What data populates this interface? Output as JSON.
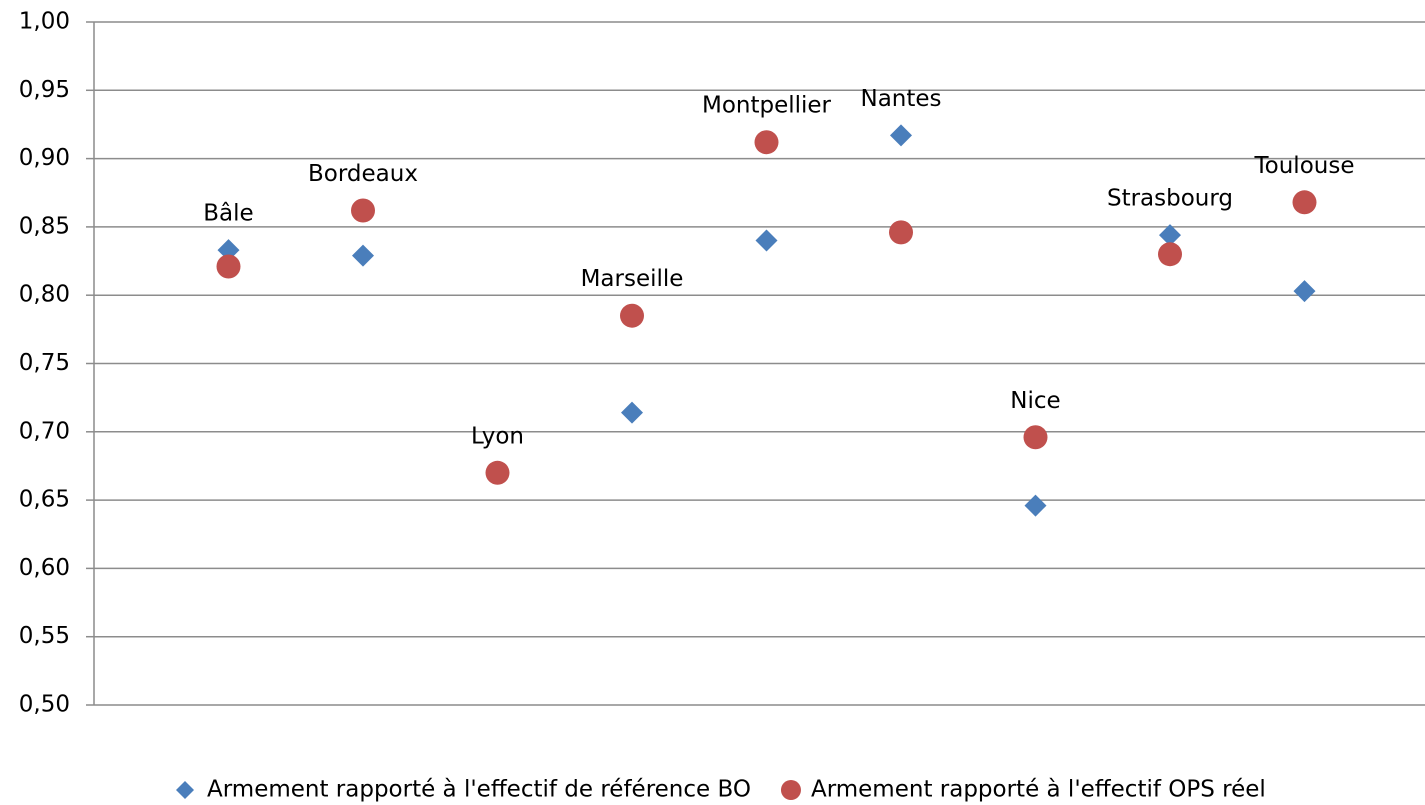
{
  "chart_data": {
    "type": "scatter",
    "categories": [
      "Bâle",
      "Bordeaux",
      "Lyon",
      "Marseille",
      "Montpellier",
      "Nantes",
      "Nice",
      "Strasbourg",
      "Toulouse"
    ],
    "series": [
      {
        "name": "Armement rapporté à l'effectif de référence BO",
        "color": "#4a7ebb",
        "marker": "diamond",
        "values": [
          0.833,
          0.829,
          0.67,
          0.714,
          0.84,
          0.917,
          0.646,
          0.844,
          0.803
        ]
      },
      {
        "name": "Armement rapporté à l'effectif OPS réel",
        "color": "#c0504d",
        "marker": "circle",
        "values": [
          0.821,
          0.862,
          0.67,
          0.785,
          0.912,
          0.846,
          0.696,
          0.83,
          0.868
        ]
      }
    ],
    "ylim": [
      0.5,
      1.0
    ],
    "yticks": [
      {
        "value": 0.5,
        "label": "0,50"
      },
      {
        "value": 0.55,
        "label": "0,55"
      },
      {
        "value": 0.6,
        "label": "0,60"
      },
      {
        "value": 0.65,
        "label": "0,65"
      },
      {
        "value": 0.7,
        "label": "0,70"
      },
      {
        "value": 0.75,
        "label": "0,75"
      },
      {
        "value": 0.8,
        "label": "0,80"
      },
      {
        "value": 0.85,
        "label": "0,85"
      },
      {
        "value": 0.9,
        "label": "0,90"
      },
      {
        "value": 0.95,
        "label": "0,95"
      },
      {
        "value": 1.0,
        "label": "1,00"
      }
    ],
    "grid": true,
    "legend": "bottom"
  }
}
